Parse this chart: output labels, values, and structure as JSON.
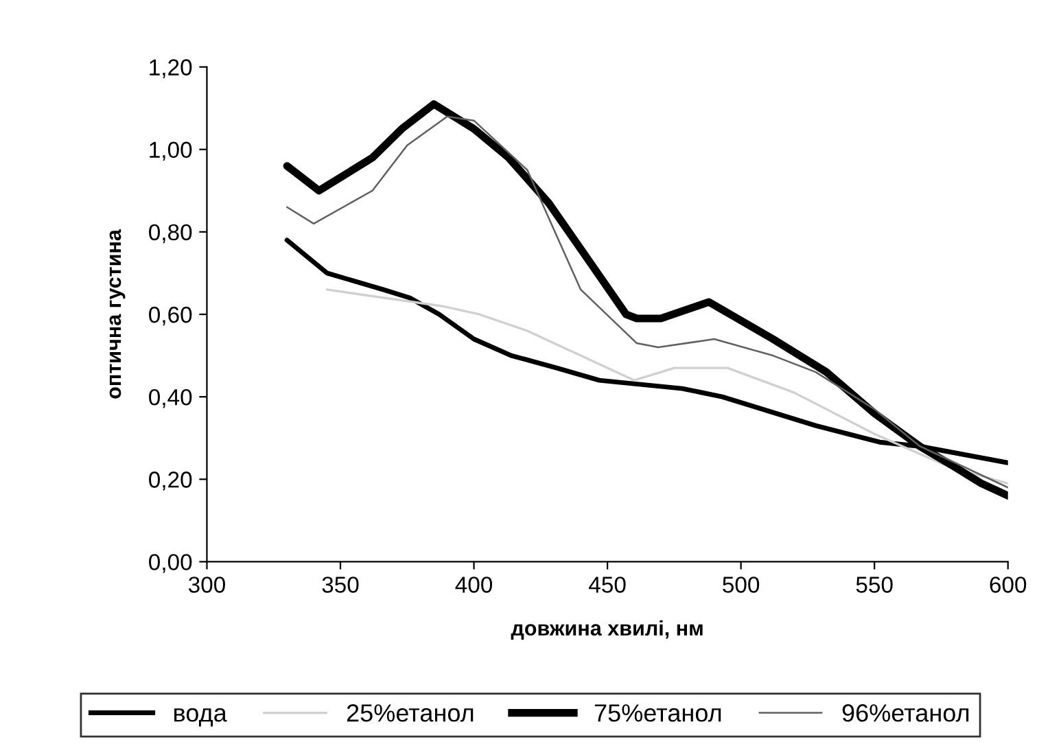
{
  "chart_data": {
    "type": "line",
    "xlabel": "довжина хвилі, нм",
    "ylabel": "оптична густина",
    "xlim": [
      300,
      600
    ],
    "xticks": [
      300,
      350,
      400,
      450,
      500,
      550,
      600
    ],
    "ylim": [
      0,
      1.2
    ],
    "yticks": [
      {
        "value": 0,
        "label": "0,00"
      },
      {
        "value": 0.2,
        "label": "0,20"
      },
      {
        "value": 0.4,
        "label": "0,40"
      },
      {
        "value": 0.6,
        "label": "0,60"
      },
      {
        "value": 0.8,
        "label": "0,80"
      },
      {
        "value": 1.0,
        "label": "1,00"
      },
      {
        "value": 1.2,
        "label": "1,20"
      }
    ],
    "grid": false,
    "legend": "bottom",
    "marker": "none",
    "series": [
      {
        "name": "вода",
        "color": "#000000",
        "x": [
          330,
          345,
          366,
          376,
          387,
          400,
          414,
          431,
          447,
          478,
          493,
          528,
          552,
          567,
          600
        ],
        "values": [
          0.78,
          0.7,
          0.66,
          0.64,
          0.6,
          0.54,
          0.5,
          0.47,
          0.44,
          0.42,
          0.4,
          0.33,
          0.29,
          0.28,
          0.24
        ]
      },
      {
        "name": "25%етанол",
        "color": "#d0d0d0",
        "x": [
          345,
          388,
          402,
          420,
          440,
          460,
          475,
          495,
          520,
          550,
          578,
          600
        ],
        "values": [
          0.66,
          0.62,
          0.6,
          0.56,
          0.5,
          0.44,
          0.47,
          0.47,
          0.41,
          0.31,
          0.23,
          0.19
        ]
      },
      {
        "name": "75%етанол",
        "color": "#000000",
        "x": [
          330,
          342,
          362,
          373,
          385,
          400,
          413,
          428,
          442,
          457,
          461,
          470,
          488,
          512,
          532,
          550,
          567,
          580,
          590,
          600
        ],
        "values": [
          0.96,
          0.9,
          0.98,
          1.05,
          1.11,
          1.05,
          0.98,
          0.87,
          0.74,
          0.6,
          0.59,
          0.59,
          0.63,
          0.54,
          0.46,
          0.36,
          0.28,
          0.23,
          0.19,
          0.16
        ]
      },
      {
        "name": "96%етанол",
        "color": "#606060",
        "x": [
          330,
          340,
          362,
          375,
          390,
          400,
          420,
          440,
          461,
          469,
          490,
          512,
          528,
          550,
          567,
          600
        ],
        "values": [
          0.86,
          0.82,
          0.9,
          1.01,
          1.08,
          1.07,
          0.95,
          0.66,
          0.53,
          0.52,
          0.54,
          0.5,
          0.46,
          0.37,
          0.28,
          0.18
        ]
      }
    ]
  }
}
